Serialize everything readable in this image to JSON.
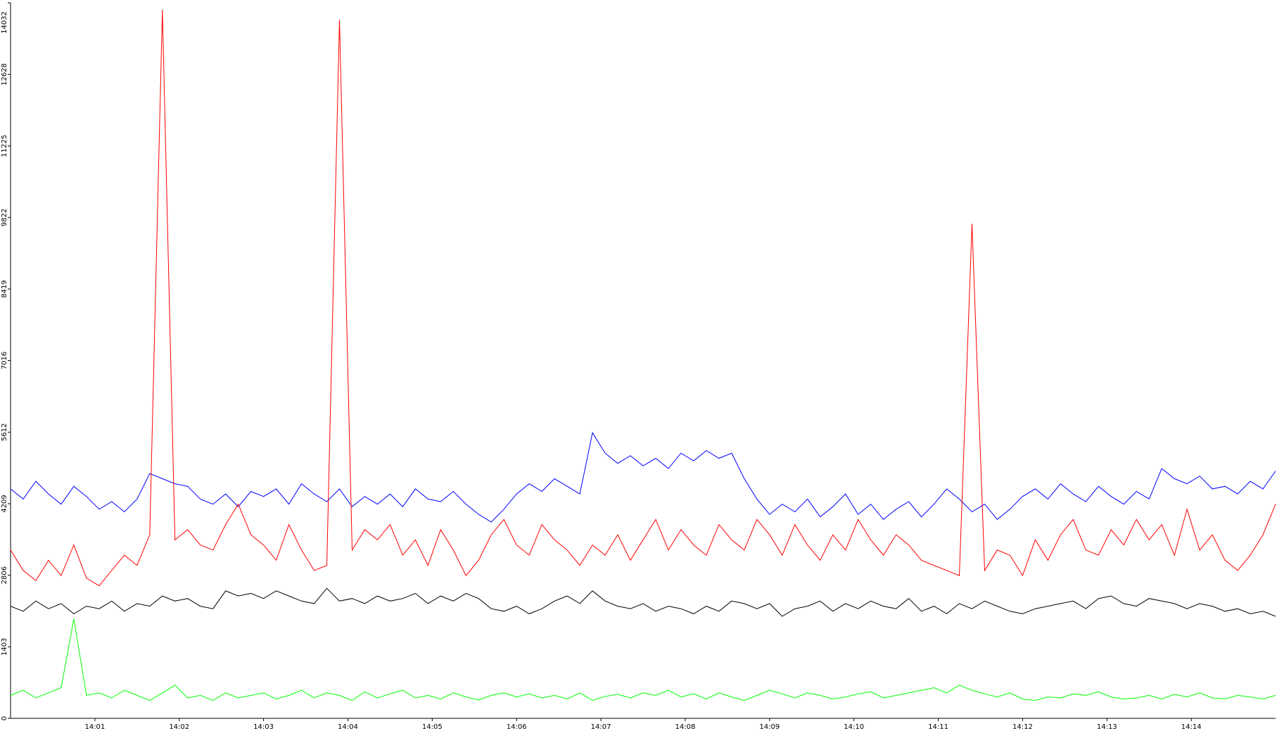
{
  "chart_data": {
    "type": "line",
    "x": [
      0,
      0.15,
      0.3,
      0.45,
      0.6,
      0.75,
      0.9,
      1.05,
      1.2,
      1.35,
      1.5,
      1.65,
      1.8,
      1.95,
      2.1,
      2.25,
      2.4,
      2.55,
      2.7,
      2.85,
      3,
      3.15,
      3.3,
      3.45,
      3.6,
      3.75,
      3.9,
      4.05,
      4.2,
      4.35,
      4.5,
      4.65,
      4.8,
      4.95,
      5.1,
      5.25,
      5.4,
      5.55,
      5.7,
      5.85,
      6,
      6.15,
      6.3,
      6.45,
      6.6,
      6.75,
      6.9,
      7.05,
      7.2,
      7.35,
      7.5,
      7.65,
      7.8,
      7.95,
      8.1,
      8.25,
      8.4,
      8.55,
      8.7,
      8.85,
      9,
      9.15,
      9.3,
      9.45,
      9.6,
      9.75,
      9.9,
      10.05,
      10.2,
      10.35,
      10.5,
      10.65,
      10.8,
      10.95,
      11.1,
      11.25,
      11.4,
      11.55,
      11.7,
      11.85,
      12,
      12.15,
      12.3,
      12.45,
      12.6,
      12.75,
      12.9,
      13.05,
      13.2,
      13.35,
      13.5,
      13.65,
      13.8,
      13.95,
      14.1,
      14.25,
      14.4,
      14.55,
      14.7,
      14.85,
      15
    ],
    "series": [
      {
        "color": "#0000ff",
        "values": [
          4500,
          4300,
          4650,
          4400,
          4200,
          4550,
          4350,
          4100,
          4250,
          4050,
          4300,
          4800,
          4700,
          4600,
          4550,
          4300,
          4200,
          4400,
          4150,
          4450,
          4350,
          4500,
          4200,
          4600,
          4400,
          4250,
          4500,
          4150,
          4350,
          4200,
          4400,
          4150,
          4500,
          4300,
          4250,
          4450,
          4200,
          4000,
          3850,
          4100,
          4400,
          4600,
          4450,
          4700,
          4550,
          4400,
          5600,
          5200,
          5000,
          5150,
          4950,
          5100,
          4900,
          5200,
          5050,
          5250,
          5100,
          5200,
          4700,
          4300,
          4000,
          4200,
          4050,
          4300,
          3950,
          4150,
          4400,
          4000,
          4200,
          3900,
          4100,
          4250,
          3950,
          4200,
          4500,
          4300,
          4050,
          4200,
          3900,
          4100,
          4350,
          4500,
          4300,
          4600,
          4400,
          4250,
          4550,
          4350,
          4200,
          4450,
          4300,
          4900,
          4700,
          4600,
          4750,
          4500,
          4550,
          4400,
          4650,
          4500,
          4850
        ]
      },
      {
        "color": "#ff0000",
        "values": [
          3300,
          2900,
          2700,
          3100,
          2800,
          3400,
          2750,
          2600,
          2900,
          3200,
          3000,
          3600,
          13900,
          3500,
          3700,
          3400,
          3300,
          3800,
          4200,
          3600,
          3400,
          3100,
          3800,
          3300,
          2900,
          3000,
          13700,
          3300,
          3700,
          3500,
          3800,
          3200,
          3500,
          3000,
          3700,
          3300,
          2800,
          3100,
          3600,
          3900,
          3400,
          3200,
          3800,
          3500,
          3300,
          3000,
          3400,
          3200,
          3600,
          3100,
          3500,
          3900,
          3300,
          3700,
          3400,
          3200,
          3800,
          3500,
          3300,
          3900,
          3600,
          3200,
          3800,
          3400,
          3100,
          3600,
          3300,
          3900,
          3500,
          3200,
          3600,
          3400,
          3100,
          3000,
          2900,
          2800,
          9700,
          2900,
          3300,
          3200,
          2800,
          3500,
          3100,
          3600,
          3900,
          3300,
          3200,
          3700,
          3400,
          3900,
          3500,
          3800,
          3200,
          4100,
          3300,
          3600,
          3100,
          2900,
          3200,
          3600,
          4200
        ]
      },
      {
        "color": "#000000",
        "values": [
          2200,
          2100,
          2300,
          2150,
          2250,
          2050,
          2200,
          2150,
          2300,
          2100,
          2250,
          2200,
          2400,
          2300,
          2350,
          2200,
          2150,
          2500,
          2400,
          2450,
          2350,
          2500,
          2400,
          2300,
          2250,
          2550,
          2300,
          2350,
          2250,
          2400,
          2300,
          2350,
          2450,
          2250,
          2400,
          2300,
          2450,
          2350,
          2150,
          2100,
          2200,
          2050,
          2150,
          2300,
          2400,
          2250,
          2500,
          2300,
          2200,
          2150,
          2250,
          2100,
          2200,
          2150,
          2050,
          2200,
          2100,
          2300,
          2250,
          2150,
          2250,
          2000,
          2150,
          2200,
          2300,
          2100,
          2250,
          2150,
          2300,
          2200,
          2150,
          2350,
          2100,
          2200,
          2050,
          2250,
          2150,
          2300,
          2200,
          2100,
          2050,
          2150,
          2200,
          2250,
          2300,
          2150,
          2350,
          2400,
          2250,
          2200,
          2350,
          2300,
          2250,
          2150,
          2250,
          2200,
          2100,
          2150,
          2050,
          2100,
          2000
        ]
      },
      {
        "color": "#00ff00",
        "values": [
          450,
          550,
          400,
          500,
          600,
          1950,
          450,
          500,
          400,
          550,
          450,
          350,
          500,
          650,
          400,
          450,
          350,
          500,
          400,
          450,
          500,
          380,
          450,
          550,
          400,
          500,
          450,
          350,
          520,
          400,
          480,
          550,
          400,
          450,
          380,
          500,
          420,
          360,
          450,
          500,
          420,
          480,
          400,
          450,
          380,
          500,
          350,
          430,
          470,
          400,
          500,
          450,
          550,
          420,
          480,
          380,
          500,
          420,
          350,
          450,
          550,
          480,
          400,
          500,
          450,
          380,
          420,
          480,
          520,
          400,
          450,
          500,
          550,
          600,
          500,
          650,
          550,
          480,
          420,
          500,
          380,
          350,
          420,
          400,
          480,
          450,
          520,
          420,
          380,
          400,
          450,
          380,
          470,
          420,
          500,
          400,
          380,
          450,
          420,
          380,
          450
        ]
      }
    ],
    "xlim": [
      0,
      15
    ],
    "xticks": [
      {
        "value": 1,
        "label": "14:01"
      },
      {
        "value": 2,
        "label": "14:02"
      },
      {
        "value": 3,
        "label": "14:03"
      },
      {
        "value": 4,
        "label": "14:04"
      },
      {
        "value": 5,
        "label": "14:05"
      },
      {
        "value": 6,
        "label": "14:06"
      },
      {
        "value": 7,
        "label": "14:07"
      },
      {
        "value": 8,
        "label": "14:08"
      },
      {
        "value": 9,
        "label": "14:09"
      },
      {
        "value": 10,
        "label": "14:10"
      },
      {
        "value": 11,
        "label": "14:11"
      },
      {
        "value": 12,
        "label": "14:12"
      },
      {
        "value": 13,
        "label": "14:13"
      },
      {
        "value": 14,
        "label": "14:14"
      }
    ],
    "ylim": [
      0,
      14032
    ],
    "yticks": [
      0,
      1403,
      2806,
      4209,
      5612,
      7016,
      8419,
      9822,
      11225,
      12628,
      14032
    ]
  }
}
